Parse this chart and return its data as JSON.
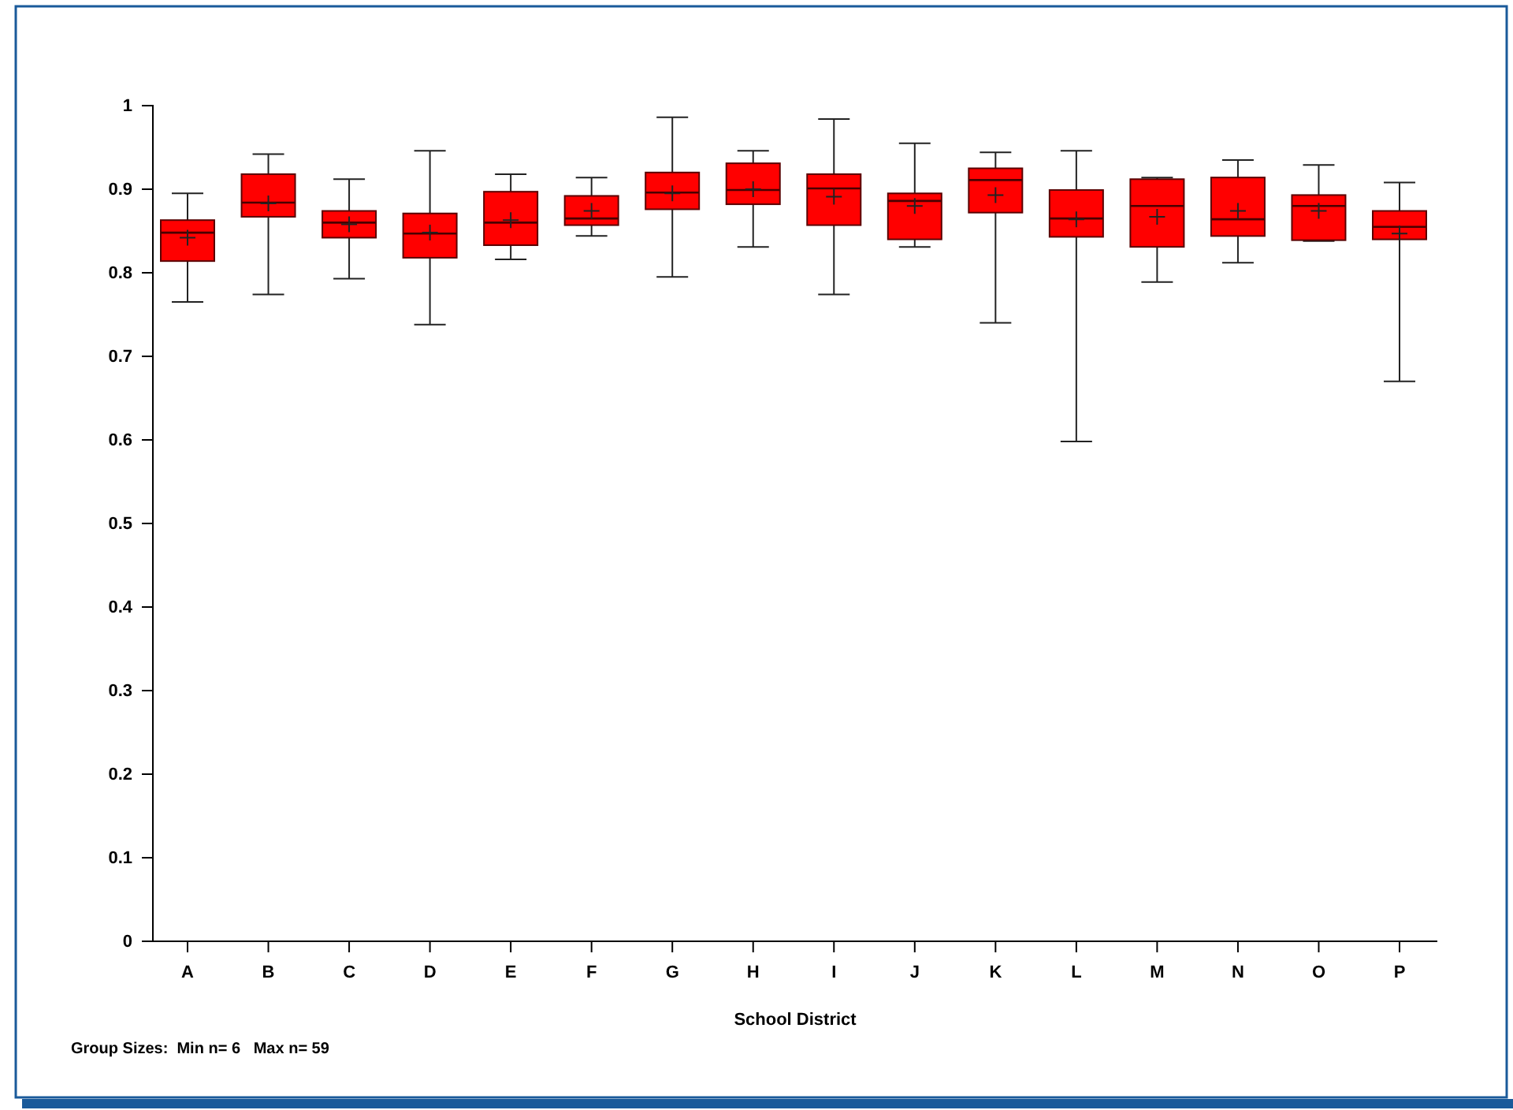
{
  "chart_data": {
    "type": "box",
    "xlabel": "School District",
    "categories": [
      "A",
      "B",
      "C",
      "D",
      "E",
      "F",
      "G",
      "H",
      "I",
      "J",
      "K",
      "L",
      "M",
      "N",
      "O",
      "P"
    ],
    "color": "#ff0000",
    "boxes": [
      {
        "low": 0.765,
        "q1": 0.814,
        "median": 0.848,
        "q3": 0.863,
        "high": 0.895,
        "mean": 0.842
      },
      {
        "low": 0.774,
        "q1": 0.867,
        "median": 0.884,
        "q3": 0.918,
        "high": 0.942,
        "mean": 0.883
      },
      {
        "low": 0.793,
        "q1": 0.842,
        "median": 0.86,
        "q3": 0.874,
        "high": 0.912,
        "mean": 0.858
      },
      {
        "low": 0.738,
        "q1": 0.818,
        "median": 0.847,
        "q3": 0.871,
        "high": 0.946,
        "mean": 0.848
      },
      {
        "low": 0.816,
        "q1": 0.833,
        "median": 0.86,
        "q3": 0.897,
        "high": 0.918,
        "mean": 0.863
      },
      {
        "low": 0.844,
        "q1": 0.857,
        "median": 0.865,
        "q3": 0.892,
        "high": 0.914,
        "mean": 0.874
      },
      {
        "low": 0.795,
        "q1": 0.876,
        "median": 0.896,
        "q3": 0.92,
        "high": 0.986,
        "mean": 0.895
      },
      {
        "low": 0.831,
        "q1": 0.882,
        "median": 0.899,
        "q3": 0.931,
        "high": 0.946,
        "mean": 0.9
      },
      {
        "low": 0.774,
        "q1": 0.857,
        "median": 0.901,
        "q3": 0.918,
        "high": 0.984,
        "mean": 0.891
      },
      {
        "low": 0.831,
        "q1": 0.84,
        "median": 0.886,
        "q3": 0.895,
        "high": 0.955,
        "mean": 0.88
      },
      {
        "low": 0.74,
        "q1": 0.872,
        "median": 0.911,
        "q3": 0.925,
        "high": 0.944,
        "mean": 0.893
      },
      {
        "low": 0.598,
        "q1": 0.843,
        "median": 0.865,
        "q3": 0.899,
        "high": 0.946,
        "mean": 0.864
      },
      {
        "low": 0.789,
        "q1": 0.831,
        "median": 0.88,
        "q3": 0.912,
        "high": 0.914,
        "mean": 0.867
      },
      {
        "low": 0.812,
        "q1": 0.844,
        "median": 0.864,
        "q3": 0.914,
        "high": 0.935,
        "mean": 0.874
      },
      {
        "low": 0.838,
        "q1": 0.839,
        "median": 0.88,
        "q3": 0.893,
        "high": 0.929,
        "mean": 0.874
      },
      {
        "low": 0.67,
        "q1": 0.84,
        "median": 0.855,
        "q3": 0.874,
        "high": 0.908,
        "mean": 0.847
      }
    ],
    "ylim": [
      0,
      1
    ],
    "yticks": [
      0,
      0.1,
      0.2,
      0.3,
      0.4,
      0.5,
      0.6,
      0.7,
      0.8,
      0.9,
      1
    ],
    "grid": false,
    "annotations": [
      "Group Sizes:  Min n= 6   Max n= 59"
    ]
  }
}
